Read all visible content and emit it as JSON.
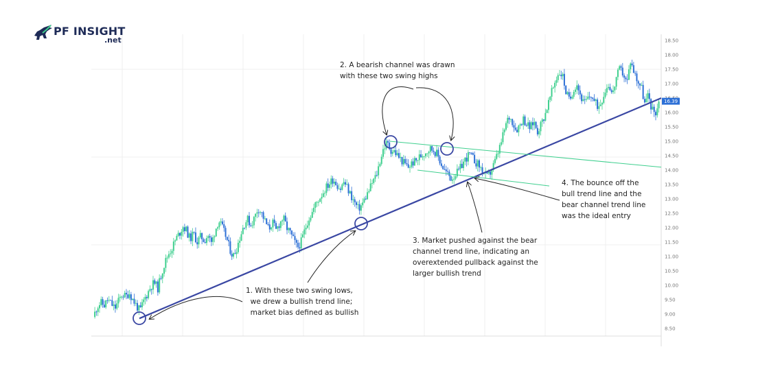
{
  "logo": {
    "name": "PF INSIGHT",
    "suffix": ".net"
  },
  "chart_data": {
    "type": "candlestick",
    "y_axis": {
      "ticks": [
        "18.50",
        "18.00",
        "17.50",
        "17.00",
        "16.50",
        "16.00",
        "15.50",
        "15.00",
        "14.50",
        "14.00",
        "13.50",
        "13.00",
        "12.50",
        "12.00",
        "11.50",
        "11.00",
        "10.50",
        "10.00",
        "9.50",
        "9.00",
        "8.50"
      ],
      "range": [
        8.4,
        18.6
      ],
      "position": "right"
    },
    "current_price": "16.39",
    "colors": {
      "up": "#3ecf8e",
      "down": "#2c6fd6",
      "bull_trend_line": "#3a47a3",
      "bear_channel": "#3ecf8e",
      "marker": "#3a47a3",
      "price_tag": "#2c6fd6"
    },
    "grid": true,
    "bull_trend_line": {
      "start_price": 8.85,
      "end_price": 16.5
    },
    "bear_channel": {
      "upper": {
        "start_price": 15.0,
        "end_price": 14.1
      },
      "lower": {
        "start_price": 14.0,
        "end_price": 13.45
      }
    },
    "price_path": [
      [
        0,
        8.9
      ],
      [
        5,
        9.25
      ],
      [
        10,
        9.4
      ],
      [
        15,
        9.3
      ],
      [
        20,
        9.5
      ],
      [
        25,
        9.35
      ],
      [
        30,
        9.2
      ],
      [
        35,
        9.45
      ],
      [
        40,
        9.7
      ],
      [
        45,
        9.6
      ],
      [
        50,
        9.75
      ],
      [
        55,
        9.5
      ],
      [
        60,
        9.3
      ],
      [
        65,
        9.1
      ],
      [
        70,
        9.45
      ],
      [
        75,
        9.7
      ],
      [
        80,
        9.95
      ],
      [
        85,
        10.1
      ],
      [
        90,
        9.9
      ],
      [
        95,
        10.4
      ],
      [
        100,
        10.8
      ],
      [
        105,
        11.1
      ],
      [
        110,
        11.3
      ],
      [
        115,
        11.6
      ],
      [
        120,
        11.8
      ],
      [
        125,
        12.05
      ],
      [
        130,
        11.9
      ],
      [
        135,
        11.6
      ],
      [
        140,
        11.8
      ],
      [
        145,
        11.5
      ],
      [
        150,
        11.7
      ],
      [
        155,
        11.55
      ],
      [
        160,
        11.75
      ],
      [
        165,
        11.45
      ],
      [
        170,
        11.9
      ],
      [
        175,
        12.25
      ],
      [
        180,
        12.0
      ],
      [
        185,
        11.7
      ],
      [
        190,
        11.3
      ],
      [
        195,
        11.0
      ],
      [
        200,
        11.3
      ],
      [
        205,
        11.7
      ],
      [
        210,
        12.1
      ],
      [
        215,
        12.3
      ],
      [
        220,
        12.1
      ],
      [
        225,
        12.35
      ],
      [
        230,
        12.7
      ],
      [
        235,
        12.5
      ],
      [
        240,
        12.2
      ],
      [
        245,
        11.95
      ],
      [
        250,
        12.2
      ],
      [
        255,
        11.9
      ],
      [
        260,
        12.15
      ],
      [
        265,
        12.35
      ],
      [
        270,
        12.0
      ],
      [
        275,
        11.8
      ],
      [
        280,
        11.55
      ],
      [
        285,
        11.3
      ],
      [
        290,
        11.5
      ],
      [
        295,
        11.9
      ],
      [
        300,
        12.3
      ],
      [
        305,
        12.5
      ],
      [
        310,
        12.8
      ],
      [
        315,
        13.0
      ],
      [
        320,
        13.2
      ],
      [
        325,
        13.4
      ],
      [
        330,
        13.55
      ],
      [
        335,
        13.7
      ],
      [
        340,
        13.5
      ],
      [
        345,
        13.35
      ],
      [
        350,
        13.6
      ],
      [
        355,
        13.35
      ],
      [
        360,
        13.1
      ],
      [
        365,
        12.85
      ],
      [
        370,
        12.65
      ],
      [
        375,
        12.8
      ],
      [
        380,
        13.05
      ],
      [
        385,
        13.3
      ],
      [
        390,
        13.6
      ],
      [
        395,
        13.8
      ],
      [
        400,
        14.3
      ],
      [
        405,
        14.75
      ],
      [
        410,
        14.95
      ],
      [
        415,
        14.7
      ],
      [
        420,
        14.65
      ],
      [
        425,
        14.5
      ],
      [
        430,
        14.35
      ],
      [
        435,
        14.2
      ],
      [
        440,
        14.1
      ],
      [
        445,
        14.25
      ],
      [
        450,
        14.3
      ],
      [
        455,
        14.45
      ],
      [
        460,
        14.55
      ],
      [
        465,
        14.65
      ],
      [
        470,
        14.75
      ],
      [
        475,
        14.7
      ],
      [
        480,
        14.55
      ],
      [
        485,
        14.25
      ],
      [
        490,
        14.0
      ],
      [
        495,
        13.85
      ],
      [
        500,
        13.7
      ],
      [
        505,
        13.85
      ],
      [
        510,
        13.95
      ],
      [
        515,
        14.2
      ],
      [
        520,
        14.4
      ],
      [
        525,
        14.55
      ],
      [
        530,
        14.4
      ],
      [
        535,
        14.25
      ],
      [
        540,
        14.1
      ],
      [
        545,
        13.9
      ],
      [
        550,
        13.75
      ],
      [
        555,
        13.95
      ],
      [
        560,
        14.25
      ],
      [
        565,
        14.6
      ],
      [
        570,
        15.0
      ],
      [
        575,
        15.5
      ],
      [
        580,
        15.85
      ],
      [
        585,
        15.7
      ],
      [
        590,
        15.4
      ],
      [
        595,
        15.55
      ],
      [
        600,
        15.8
      ],
      [
        605,
        15.6
      ],
      [
        610,
        15.45
      ],
      [
        615,
        15.7
      ],
      [
        620,
        15.35
      ],
      [
        625,
        15.6
      ],
      [
        630,
        15.9
      ],
      [
        635,
        16.3
      ],
      [
        640,
        16.7
      ],
      [
        645,
        17.1
      ],
      [
        650,
        17.4
      ],
      [
        655,
        17.3
      ],
      [
        660,
        16.7
      ],
      [
        665,
        16.4
      ],
      [
        670,
        16.8
      ],
      [
        675,
        17.0
      ],
      [
        680,
        16.6
      ],
      [
        685,
        16.3
      ],
      [
        690,
        16.45
      ],
      [
        695,
        16.6
      ],
      [
        700,
        16.35
      ],
      [
        705,
        16.2
      ],
      [
        710,
        16.45
      ],
      [
        715,
        16.8
      ],
      [
        720,
        17.0
      ],
      [
        725,
        16.6
      ],
      [
        730,
        17.2
      ],
      [
        735,
        17.5
      ],
      [
        740,
        17.35
      ],
      [
        745,
        17.0
      ],
      [
        750,
        17.8
      ],
      [
        755,
        17.4
      ],
      [
        760,
        17.1
      ],
      [
        765,
        16.9
      ],
      [
        770,
        16.3
      ],
      [
        775,
        16.6
      ],
      [
        780,
        16.1
      ],
      [
        785,
        16.0
      ],
      [
        790,
        16.39
      ]
    ]
  },
  "annotations": {
    "note1": "1. With these two swing lows,\n  we drew a bullish trend line;\n  market bias defined as bullish",
    "note2": "2. A bearish channel was drawn\nwith these two swing highs",
    "note3": "3. Market pushed against the bear\nchannel trend line, indicating an\noverextended pullback against the\nlarger bullish trend",
    "note4": "4. The bounce off the\nbull trend line and the\nbear channel trend line\nwas the ideal entry"
  }
}
